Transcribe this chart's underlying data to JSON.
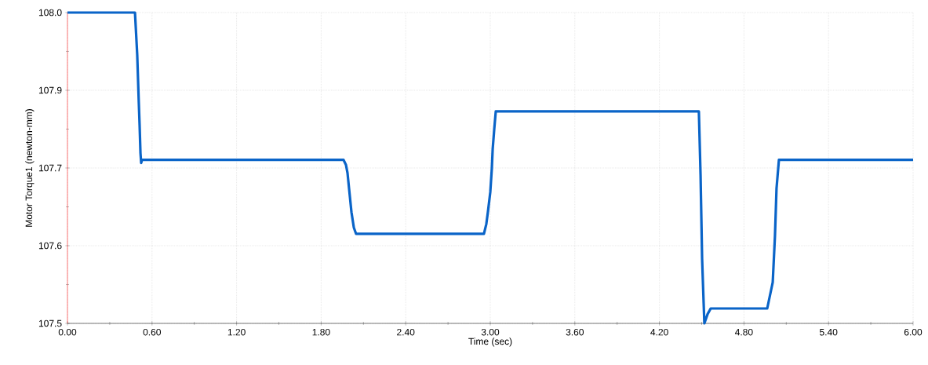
{
  "chart_data": {
    "type": "line",
    "xlabel": "Time (sec)",
    "ylabel": "Motor Torque1 (newton-mm)",
    "x": [
      0,
      0.479,
      0.495,
      0.506,
      0.512,
      0.518,
      0.523,
      0.529,
      1.959,
      1.976,
      1.987,
      1.998,
      2.015,
      2.032,
      2.048,
      2.955,
      2.972,
      2.983,
      3.0,
      3.011,
      3.017,
      3.028,
      3.039,
      4.48,
      4.492,
      4.503,
      4.514,
      4.519,
      4.542,
      4.564,
      4.965,
      5.004,
      5.02,
      5.031,
      5.048,
      6.0
    ],
    "series": [
      {
        "color": "#0a64c8",
        "values": [
          108.0,
          108.0,
          107.932,
          107.856,
          107.818,
          107.774,
          107.758,
          107.763,
          107.763,
          107.755,
          107.742,
          107.717,
          107.679,
          107.654,
          107.644,
          107.644,
          107.66,
          107.679,
          107.711,
          107.749,
          107.78,
          107.812,
          107.841,
          107.841,
          107.739,
          107.604,
          107.532,
          107.5,
          107.515,
          107.524,
          107.524,
          107.566,
          107.641,
          107.717,
          107.763,
          107.763
        ]
      }
    ],
    "xlim": [
      0,
      6
    ],
    "ylim": [
      107.5,
      108.0
    ],
    "xticks": [
      {
        "value": 0,
        "label": "0.00"
      },
      {
        "value": 0.3,
        "label": null
      },
      {
        "value": 0.6,
        "label": "0.60"
      },
      {
        "value": 0.9,
        "label": null
      },
      {
        "value": 1.2,
        "label": "1.20"
      },
      {
        "value": 1.5,
        "label": null
      },
      {
        "value": 1.8,
        "label": "1.80"
      },
      {
        "value": 2.1,
        "label": null
      },
      {
        "value": 2.4,
        "label": "2.40"
      },
      {
        "value": 2.7,
        "label": null
      },
      {
        "value": 3.0,
        "label": "3.00"
      },
      {
        "value": 3.3,
        "label": null
      },
      {
        "value": 3.6,
        "label": "3.60"
      },
      {
        "value": 3.9,
        "label": null
      },
      {
        "value": 4.2,
        "label": "4.20"
      },
      {
        "value": 4.5,
        "label": null
      },
      {
        "value": 4.8,
        "label": "4.80"
      },
      {
        "value": 5.1,
        "label": null
      },
      {
        "value": 5.4,
        "label": "5.40"
      },
      {
        "value": 5.7,
        "label": null
      },
      {
        "value": 6.0,
        "label": "6.00"
      }
    ],
    "yticks": [
      {
        "value": 107.5,
        "label": "107.5"
      },
      {
        "value": 107.5625,
        "label": null
      },
      {
        "value": 107.625,
        "label": "107.6"
      },
      {
        "value": 107.6875,
        "label": null
      },
      {
        "value": 107.75,
        "label": "107.7"
      },
      {
        "value": 107.8125,
        "label": null
      },
      {
        "value": 107.875,
        "label": "107.9"
      },
      {
        "value": 107.9375,
        "label": null
      },
      {
        "value": 108.0,
        "label": "108.0"
      }
    ],
    "grid": true,
    "marker": "none",
    "line_style": "solid"
  }
}
